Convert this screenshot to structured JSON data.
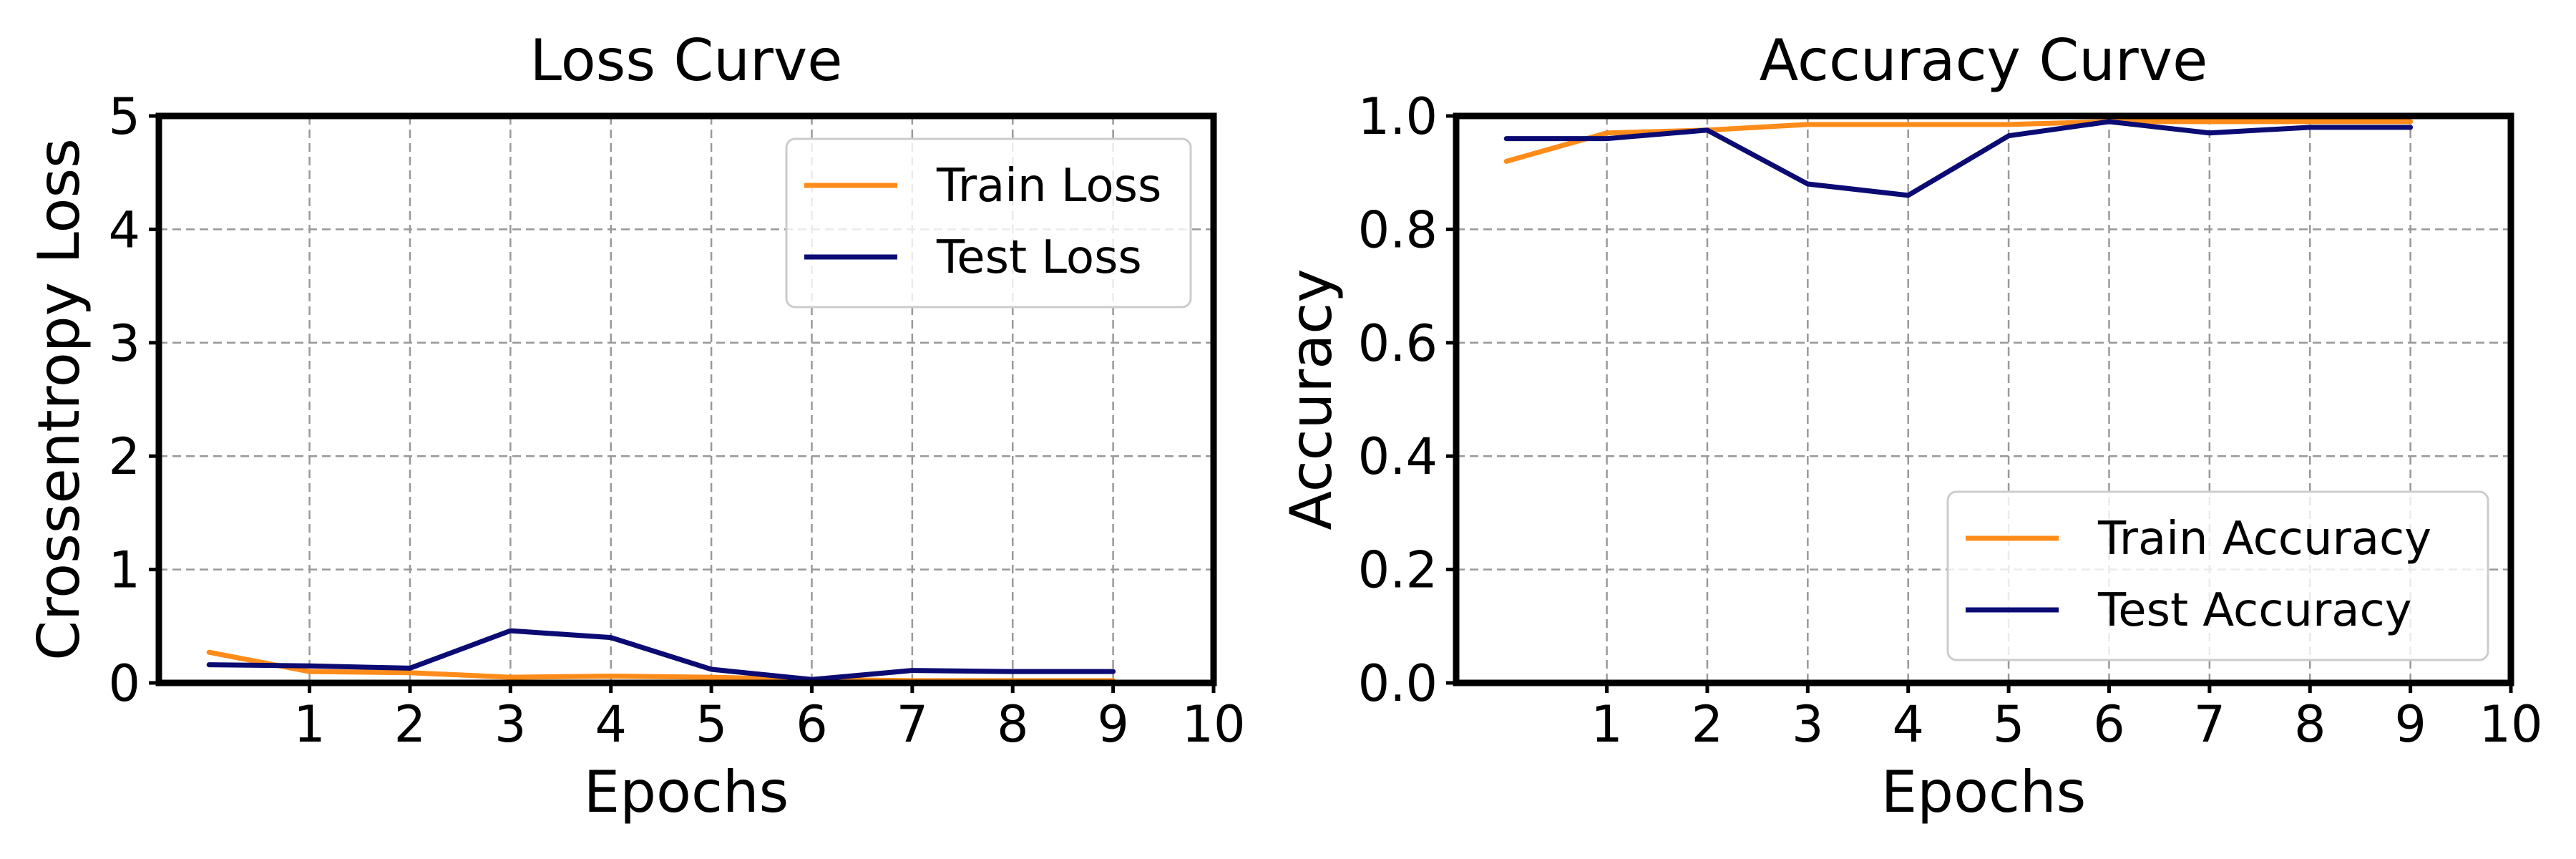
{
  "colors": {
    "train": "#ff8c1a",
    "test": "#0b0b73",
    "grid": "#999999",
    "frame": "#000000",
    "background": "#ffffff"
  },
  "chart_data": [
    {
      "type": "line",
      "title": "Loss Curve",
      "xlabel": "Epochs",
      "ylabel": "Crossentropy Loss",
      "xlim": [
        -0.5,
        10
      ],
      "ylim": [
        0,
        5
      ],
      "xticks": [
        "1",
        "2",
        "3",
        "4",
        "5",
        "6",
        "7",
        "8",
        "9",
        "10"
      ],
      "yticks": [
        "0",
        "1",
        "2",
        "3",
        "4",
        "5"
      ],
      "grid": true,
      "legend_position": "upper right",
      "x": [
        0,
        1,
        2,
        3,
        4,
        5,
        6,
        7,
        8,
        9
      ],
      "series": [
        {
          "name": "Train Loss",
          "color": "train",
          "values": [
            0.27,
            0.1,
            0.09,
            0.05,
            0.06,
            0.05,
            0.03,
            0.02,
            0.02,
            0.02
          ]
        },
        {
          "name": "Test Loss",
          "color": "test",
          "values": [
            0.16,
            0.15,
            0.13,
            0.46,
            0.4,
            0.12,
            0.03,
            0.11,
            0.1,
            0.1
          ]
        }
      ]
    },
    {
      "type": "line",
      "title": "Accuracy Curve",
      "xlabel": "Epochs",
      "ylabel": "Accuracy",
      "xlim": [
        -0.5,
        10
      ],
      "ylim": [
        0,
        1
      ],
      "xticks": [
        "1",
        "2",
        "3",
        "4",
        "5",
        "6",
        "7",
        "8",
        "9",
        "10"
      ],
      "yticks": [
        "0.0",
        "0.2",
        "0.4",
        "0.6",
        "0.8",
        "1.0"
      ],
      "grid": true,
      "legend_position": "lower right",
      "x": [
        0,
        1,
        2,
        3,
        4,
        5,
        6,
        7,
        8,
        9
      ],
      "series": [
        {
          "name": "Train Accuracy",
          "color": "train",
          "values": [
            0.92,
            0.97,
            0.975,
            0.985,
            0.985,
            0.985,
            0.99,
            0.99,
            0.99,
            0.99
          ]
        },
        {
          "name": "Test Accuracy",
          "color": "test",
          "values": [
            0.96,
            0.96,
            0.975,
            0.88,
            0.86,
            0.965,
            0.99,
            0.97,
            0.98,
            0.98
          ]
        }
      ]
    }
  ]
}
